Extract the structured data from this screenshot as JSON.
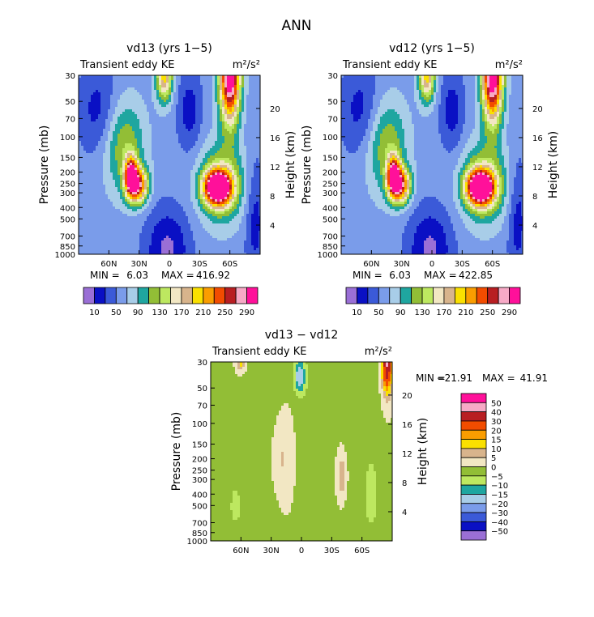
{
  "figure_title": "ANN",
  "chart_data": [
    {
      "type": "heatmap",
      "title": "vd13 (yrs 1−5)",
      "subtitle": "Transient eddy KE",
      "units": "m²/s²",
      "ylabel": "Pressure (mb)",
      "ylabel_right": "Height (km)",
      "pressure_ticks": [
        "30",
        "50",
        "70",
        "100",
        "150",
        "200",
        "250",
        "300",
        "400",
        "500",
        "700",
        "850",
        "1000"
      ],
      "height_ticks": [
        "20",
        "16",
        "12",
        "8",
        "4"
      ],
      "lat_ticks": [
        "60N",
        "30N",
        "0",
        "30S",
        "60S"
      ],
      "min_label": "MIN =",
      "min": "6.03",
      "max_label": "MAX =",
      "max": "416.92",
      "colorbar_labels": [
        "10",
        "50",
        "90",
        "130",
        "170",
        "210",
        "250",
        "290"
      ],
      "colors": [
        "#9a6fd6",
        "#0a10c4",
        "#3b5ad8",
        "#7a9cea",
        "#a8cde8",
        "#1fa6a0",
        "#92be36",
        "#bde860",
        "#f2e7c3",
        "#d8b48c",
        "#fae000",
        "#fa9d00",
        "#f24c00",
        "#b81e22",
        "#f7a9c6",
        "#ff109a"
      ]
    },
    {
      "type": "heatmap",
      "title": "vd12 (yrs 1−5)",
      "subtitle": "Transient eddy KE",
      "units": "m²/s²",
      "ylabel": "Pressure (mb)",
      "ylabel_right": "Height (km)",
      "pressure_ticks": [
        "30",
        "50",
        "70",
        "100",
        "150",
        "200",
        "250",
        "300",
        "400",
        "500",
        "700",
        "850",
        "1000"
      ],
      "height_ticks": [
        "20",
        "16",
        "12",
        "8",
        "4"
      ],
      "lat_ticks": [
        "60N",
        "30N",
        "0",
        "30S",
        "60S"
      ],
      "min_label": "MIN =",
      "min": "6.03",
      "max_label": "MAX =",
      "max": "422.85",
      "colorbar_labels": [
        "10",
        "50",
        "90",
        "130",
        "170",
        "210",
        "250",
        "290"
      ],
      "colors": [
        "#9a6fd6",
        "#0a10c4",
        "#3b5ad8",
        "#7a9cea",
        "#a8cde8",
        "#1fa6a0",
        "#92be36",
        "#bde860",
        "#f2e7c3",
        "#d8b48c",
        "#fae000",
        "#fa9d00",
        "#f24c00",
        "#b81e22",
        "#f7a9c6",
        "#ff109a"
      ]
    },
    {
      "type": "heatmap",
      "title": "vd13 − vd12",
      "subtitle": "Transient eddy KE",
      "units": "m²/s²",
      "ylabel": "Pressure (mb)",
      "ylabel_right": "Height (km)",
      "pressure_ticks": [
        "30",
        "50",
        "70",
        "100",
        "150",
        "200",
        "250",
        "300",
        "400",
        "500",
        "700",
        "850",
        "1000"
      ],
      "height_ticks": [
        "20",
        "16",
        "12",
        "8",
        "4"
      ],
      "lat_ticks": [
        "60N",
        "30N",
        "0",
        "30S",
        "60S"
      ],
      "min_label": "MIN =",
      "min": "−21.91",
      "max_label": "MAX =",
      "max": "41.91",
      "colorbar_labels": [
        "50",
        "40",
        "30",
        "20",
        "15",
        "10",
        "5",
        "0",
        "−5",
        "−10",
        "−15",
        "−20",
        "−30",
        "−40",
        "−50"
      ],
      "colors": [
        "#ff109a",
        "#f7a9c6",
        "#b81e22",
        "#f24c00",
        "#fa9d00",
        "#fae000",
        "#d8b48c",
        "#f2e7c3",
        "#92be36",
        "#bde860",
        "#1fa6a0",
        "#a8cde8",
        "#7a9cea",
        "#3b5ad8",
        "#0a10c4",
        "#9a6fd6"
      ]
    }
  ]
}
